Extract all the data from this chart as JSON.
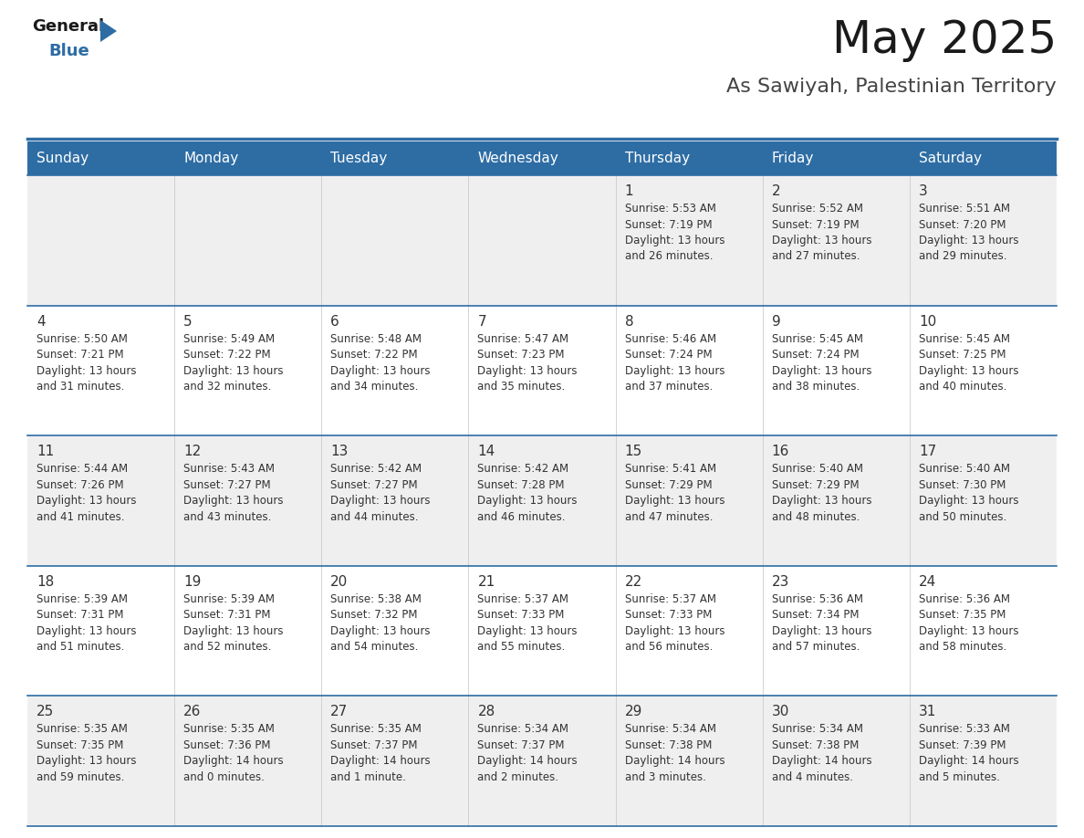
{
  "title": "May 2025",
  "subtitle": "As Sawiyah, Palestinian Territory",
  "header_bg_color": "#2E6DA4",
  "header_text_color": "#FFFFFF",
  "cell_bg_even": "#EFEFEF",
  "cell_bg_odd": "#FFFFFF",
  "text_color": "#333333",
  "days_of_week": [
    "Sunday",
    "Monday",
    "Tuesday",
    "Wednesday",
    "Thursday",
    "Friday",
    "Saturday"
  ],
  "weeks": [
    [
      {
        "day": null,
        "info": null
      },
      {
        "day": null,
        "info": null
      },
      {
        "day": null,
        "info": null
      },
      {
        "day": null,
        "info": null
      },
      {
        "day": 1,
        "info": "Sunrise: 5:53 AM\nSunset: 7:19 PM\nDaylight: 13 hours\nand 26 minutes."
      },
      {
        "day": 2,
        "info": "Sunrise: 5:52 AM\nSunset: 7:19 PM\nDaylight: 13 hours\nand 27 minutes."
      },
      {
        "day": 3,
        "info": "Sunrise: 5:51 AM\nSunset: 7:20 PM\nDaylight: 13 hours\nand 29 minutes."
      }
    ],
    [
      {
        "day": 4,
        "info": "Sunrise: 5:50 AM\nSunset: 7:21 PM\nDaylight: 13 hours\nand 31 minutes."
      },
      {
        "day": 5,
        "info": "Sunrise: 5:49 AM\nSunset: 7:22 PM\nDaylight: 13 hours\nand 32 minutes."
      },
      {
        "day": 6,
        "info": "Sunrise: 5:48 AM\nSunset: 7:22 PM\nDaylight: 13 hours\nand 34 minutes."
      },
      {
        "day": 7,
        "info": "Sunrise: 5:47 AM\nSunset: 7:23 PM\nDaylight: 13 hours\nand 35 minutes."
      },
      {
        "day": 8,
        "info": "Sunrise: 5:46 AM\nSunset: 7:24 PM\nDaylight: 13 hours\nand 37 minutes."
      },
      {
        "day": 9,
        "info": "Sunrise: 5:45 AM\nSunset: 7:24 PM\nDaylight: 13 hours\nand 38 minutes."
      },
      {
        "day": 10,
        "info": "Sunrise: 5:45 AM\nSunset: 7:25 PM\nDaylight: 13 hours\nand 40 minutes."
      }
    ],
    [
      {
        "day": 11,
        "info": "Sunrise: 5:44 AM\nSunset: 7:26 PM\nDaylight: 13 hours\nand 41 minutes."
      },
      {
        "day": 12,
        "info": "Sunrise: 5:43 AM\nSunset: 7:27 PM\nDaylight: 13 hours\nand 43 minutes."
      },
      {
        "day": 13,
        "info": "Sunrise: 5:42 AM\nSunset: 7:27 PM\nDaylight: 13 hours\nand 44 minutes."
      },
      {
        "day": 14,
        "info": "Sunrise: 5:42 AM\nSunset: 7:28 PM\nDaylight: 13 hours\nand 46 minutes."
      },
      {
        "day": 15,
        "info": "Sunrise: 5:41 AM\nSunset: 7:29 PM\nDaylight: 13 hours\nand 47 minutes."
      },
      {
        "day": 16,
        "info": "Sunrise: 5:40 AM\nSunset: 7:29 PM\nDaylight: 13 hours\nand 48 minutes."
      },
      {
        "day": 17,
        "info": "Sunrise: 5:40 AM\nSunset: 7:30 PM\nDaylight: 13 hours\nand 50 minutes."
      }
    ],
    [
      {
        "day": 18,
        "info": "Sunrise: 5:39 AM\nSunset: 7:31 PM\nDaylight: 13 hours\nand 51 minutes."
      },
      {
        "day": 19,
        "info": "Sunrise: 5:39 AM\nSunset: 7:31 PM\nDaylight: 13 hours\nand 52 minutes."
      },
      {
        "day": 20,
        "info": "Sunrise: 5:38 AM\nSunset: 7:32 PM\nDaylight: 13 hours\nand 54 minutes."
      },
      {
        "day": 21,
        "info": "Sunrise: 5:37 AM\nSunset: 7:33 PM\nDaylight: 13 hours\nand 55 minutes."
      },
      {
        "day": 22,
        "info": "Sunrise: 5:37 AM\nSunset: 7:33 PM\nDaylight: 13 hours\nand 56 minutes."
      },
      {
        "day": 23,
        "info": "Sunrise: 5:36 AM\nSunset: 7:34 PM\nDaylight: 13 hours\nand 57 minutes."
      },
      {
        "day": 24,
        "info": "Sunrise: 5:36 AM\nSunset: 7:35 PM\nDaylight: 13 hours\nand 58 minutes."
      }
    ],
    [
      {
        "day": 25,
        "info": "Sunrise: 5:35 AM\nSunset: 7:35 PM\nDaylight: 13 hours\nand 59 minutes."
      },
      {
        "day": 26,
        "info": "Sunrise: 5:35 AM\nSunset: 7:36 PM\nDaylight: 14 hours\nand 0 minutes."
      },
      {
        "day": 27,
        "info": "Sunrise: 5:35 AM\nSunset: 7:37 PM\nDaylight: 14 hours\nand 1 minute."
      },
      {
        "day": 28,
        "info": "Sunrise: 5:34 AM\nSunset: 7:37 PM\nDaylight: 14 hours\nand 2 minutes."
      },
      {
        "day": 29,
        "info": "Sunrise: 5:34 AM\nSunset: 7:38 PM\nDaylight: 14 hours\nand 3 minutes."
      },
      {
        "day": 30,
        "info": "Sunrise: 5:34 AM\nSunset: 7:38 PM\nDaylight: 14 hours\nand 4 minutes."
      },
      {
        "day": 31,
        "info": "Sunrise: 5:33 AM\nSunset: 7:39 PM\nDaylight: 14 hours\nand 5 minutes."
      }
    ]
  ],
  "logo_general_color": "#1a1a1a",
  "logo_blue_color": "#2E6DA4",
  "title_fontsize": 36,
  "subtitle_fontsize": 16,
  "dow_fontsize": 11,
  "day_num_fontsize": 11,
  "info_fontsize": 8.5
}
